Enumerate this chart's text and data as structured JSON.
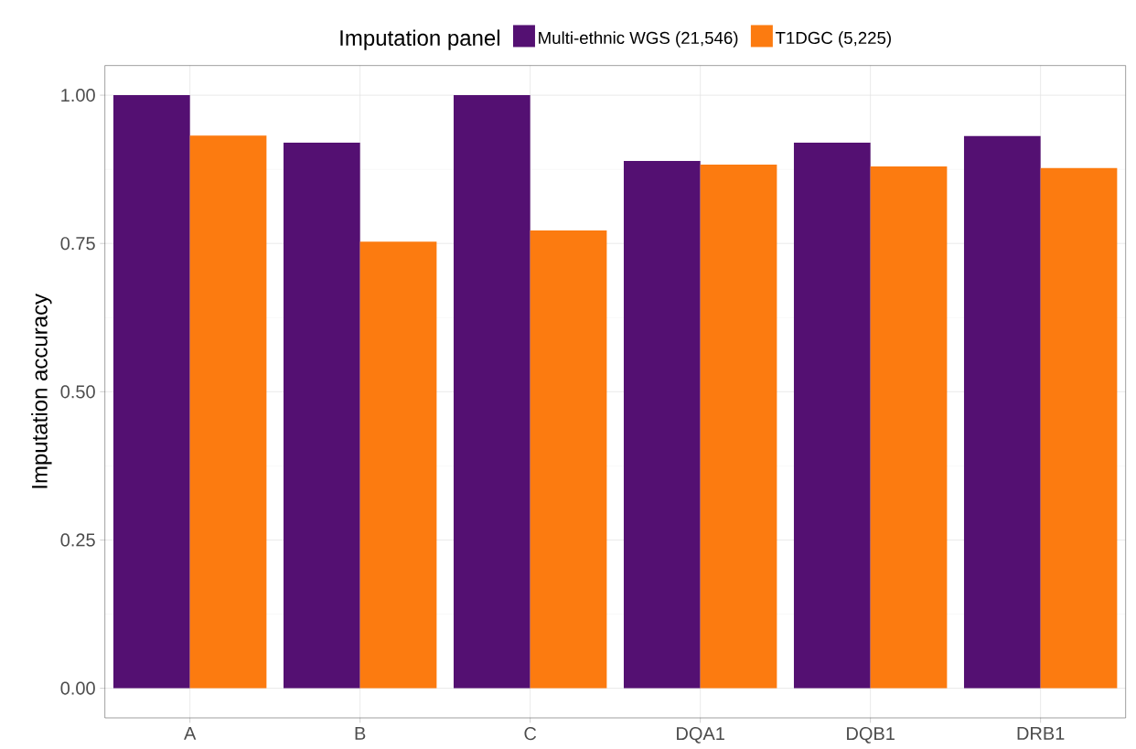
{
  "chart_data": {
    "type": "bar",
    "ylabel": "Imputation accuracy",
    "legend_title": "Imputation panel",
    "legend": "top",
    "categories": [
      "A",
      "B",
      "C",
      "DQA1",
      "DQB1",
      "DRB1"
    ],
    "series": [
      {
        "name": "Multi-ethnic WGS (21,546)",
        "color": "#541072",
        "values": [
          1.0,
          0.92,
          1.0,
          0.889,
          0.92,
          0.931
        ]
      },
      {
        "name": "T1DGC (5,225)",
        "color": "#fc7b10",
        "values": [
          0.932,
          0.753,
          0.772,
          0.883,
          0.88,
          0.877
        ]
      }
    ],
    "ylim": [
      -0.05,
      1.05
    ],
    "yticks": [
      {
        "value": 0,
        "label": "0.00"
      },
      {
        "value": 0.25,
        "label": "0.25"
      },
      {
        "value": 0.5,
        "label": "0.50"
      },
      {
        "value": 0.75,
        "label": "0.75"
      },
      {
        "value": 1,
        "label": "1.00"
      }
    ],
    "grid": true
  }
}
